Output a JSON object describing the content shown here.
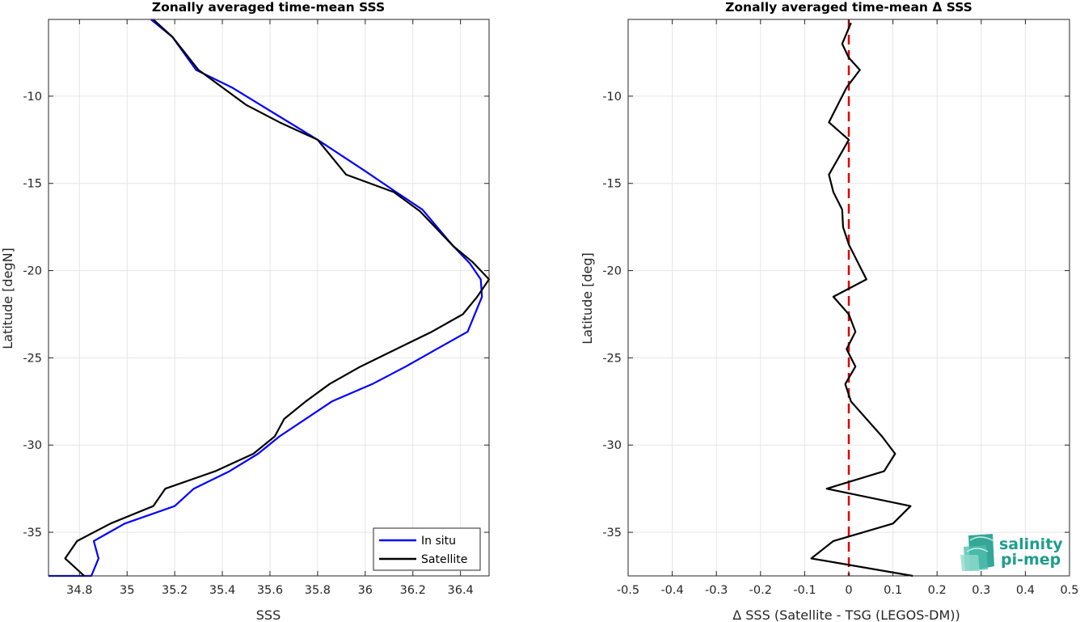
{
  "chart_data": [
    {
      "type": "line",
      "title": "Zonally averaged time-mean SSS",
      "xlabel": "SSS",
      "ylabel": "Latitude [degN]",
      "xlim": [
        34.67,
        36.52
      ],
      "ylim": [
        -37.5,
        -5.6
      ],
      "xticks": [
        34.8,
        35,
        35.2,
        35.4,
        35.6,
        35.8,
        36,
        36.2,
        36.4
      ],
      "xtick_labels": [
        "34.8",
        "35",
        "35.2",
        "35.4",
        "35.6",
        "35.8",
        "36",
        "36.2",
        "36.4"
      ],
      "yticks": [
        -10,
        -15,
        -20,
        -25,
        -30,
        -35
      ],
      "ytick_labels": [
        "-10",
        "-15",
        "-20",
        "-25",
        "-30",
        "-35"
      ],
      "grid": true,
      "legend": "bottom-right",
      "series": [
        {
          "name": "In situ",
          "color": "#0000ff",
          "x": [
            35.1,
            35.19,
            35.29,
            35.44,
            35.62,
            35.8,
            36.0,
            36.13,
            36.24,
            36.37,
            36.44,
            36.485,
            36.49,
            36.43,
            36.3,
            36.17,
            36.03,
            35.86,
            35.75,
            35.64,
            35.55,
            35.43,
            35.28,
            35.2,
            34.99,
            34.86,
            34.88,
            34.85,
            34.67
          ],
          "y": [
            -5.6,
            -6.6,
            -8.5,
            -9.5,
            -11,
            -12.5,
            -14.3,
            -15.5,
            -16.5,
            -18.6,
            -19.6,
            -20.5,
            -21.5,
            -23.5,
            -24.5,
            -25.5,
            -26.5,
            -27.5,
            -28.5,
            -29.5,
            -30.5,
            -31.5,
            -32.5,
            -33.5,
            -34.5,
            -35.5,
            -36.5,
            -37.5,
            -37.5
          ]
        },
        {
          "name": "Satellite",
          "color": "#000000",
          "x": [
            35.11,
            35.19,
            35.3,
            35.5,
            35.64,
            35.8,
            35.92,
            36.12,
            36.23,
            36.37,
            36.45,
            36.52,
            36.47,
            36.41,
            36.28,
            36.13,
            35.98,
            35.85,
            35.75,
            35.66,
            35.62,
            35.53,
            35.37,
            35.16,
            35.11,
            34.93,
            34.79,
            34.74,
            34.82
          ],
          "y": [
            -5.6,
            -6.6,
            -8.5,
            -10.5,
            -11.5,
            -12.5,
            -14.5,
            -15.5,
            -16.6,
            -18.6,
            -19.5,
            -20.5,
            -21.5,
            -22.5,
            -23.5,
            -24.5,
            -25.5,
            -26.5,
            -27.5,
            -28.5,
            -29.5,
            -30.5,
            -31.5,
            -32.5,
            -33.5,
            -34.5,
            -35.5,
            -36.5,
            -37.5
          ]
        }
      ]
    },
    {
      "type": "line",
      "title": "Zonally averaged time-mean Δ SSS",
      "xlabel": "Δ SSS (Satellite - TSG (LEGOS-DM))",
      "ylabel": "Latitude [deg]",
      "xlim": [
        -0.5,
        0.5
      ],
      "ylim": [
        -37.5,
        -5.6
      ],
      "xticks": [
        -0.5,
        -0.4,
        -0.3,
        -0.2,
        -0.1,
        0,
        0.1,
        0.2,
        0.3,
        0.4,
        0.5
      ],
      "xtick_labels": [
        "-0.5",
        "-0.4",
        "-0.3",
        "-0.2",
        "-0.1",
        "0",
        "0.1",
        "0.2",
        "0.3",
        "0.4",
        "0.5"
      ],
      "yticks": [
        -10,
        -15,
        -20,
        -25,
        -30,
        -35
      ],
      "ytick_labels": [
        "-10",
        "-15",
        "-20",
        "-25",
        "-30",
        "-35"
      ],
      "grid": true,
      "reference_line": {
        "x": 0,
        "color": "#e00000",
        "style": "dashed"
      },
      "series": [
        {
          "color": "#000000",
          "x": [
            0.005,
            -0.015,
            0.0,
            0.025,
            -0.005,
            -0.025,
            -0.045,
            0.0,
            -0.045,
            -0.035,
            -0.015,
            -0.013,
            0.0,
            0.04,
            -0.035,
            0.0,
            0.015,
            -0.005,
            0.015,
            -0.008,
            0.005,
            0.075,
            0.105,
            0.08,
            -0.05,
            0.14,
            0.1,
            -0.035,
            -0.085,
            0.145
          ],
          "y": [
            -5.8,
            -7.0,
            -7.8,
            -8.5,
            -9.5,
            -10.5,
            -11.5,
            -12.5,
            -14.5,
            -15.5,
            -16.5,
            -17.5,
            -18.5,
            -20.5,
            -21.5,
            -22.5,
            -23.5,
            -24.5,
            -25.5,
            -26.5,
            -27.5,
            -29.5,
            -30.5,
            -31.5,
            -32.5,
            -33.5,
            -34.5,
            -35.5,
            -36.5,
            -37.5
          ]
        }
      ]
    }
  ],
  "legend": {
    "items": [
      {
        "label": "In situ",
        "color": "#0000ff"
      },
      {
        "label": "Satellite",
        "color": "#000000"
      }
    ]
  },
  "logo": {
    "line1": "salinity",
    "line2": "pi-mep",
    "color": "#1f9d8c"
  }
}
